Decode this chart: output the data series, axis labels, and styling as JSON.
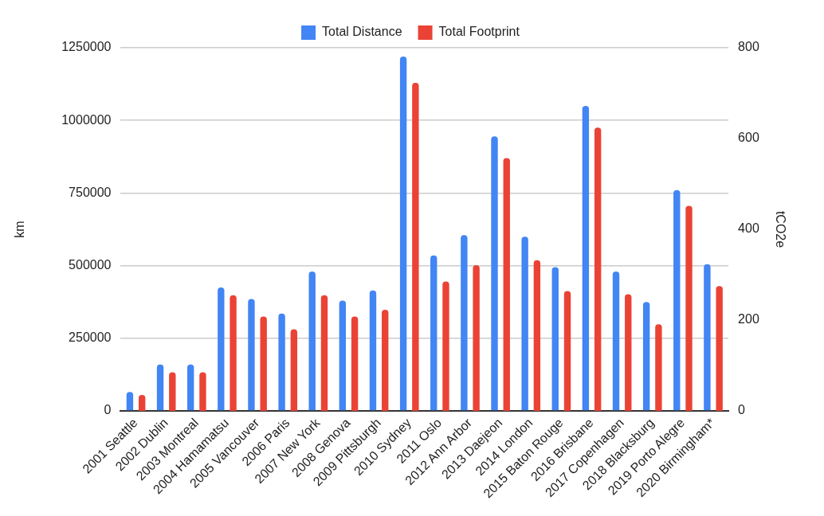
{
  "chart_data": {
    "type": "bar",
    "categories": [
      "2001 Seattle",
      "2002 Dublin",
      "2003 Montreal",
      "2004 Hamamatsu",
      "2005 Vancouver",
      "2006 Paris",
      "2007 New York",
      "2008 Genova",
      "2009 Pittsburgh",
      "2010 Sydney",
      "2011 Oslo",
      "2012 Ann Arbor",
      "2013 Daejeon",
      "2014 London",
      "2015 Baton Rouge",
      "2016 Brisbane",
      "2017 Copenhagen",
      "2018 Blacksburg",
      "2019 Porto Alegre",
      "2020 Birmingham*"
    ],
    "series": [
      {
        "name": "Total Distance",
        "color": "#4285f4",
        "values": [
          65000,
          160000,
          160000,
          425000,
          385000,
          335000,
          480000,
          380000,
          415000,
          1220000,
          535000,
          605000,
          945000,
          600000,
          495000,
          1050000,
          480000,
          375000,
          760000,
          505000
        ]
      },
      {
        "name": "Total Footprint",
        "color": "#ea4335",
        "axis": "y2",
        "values": [
          35,
          85,
          85,
          255,
          208,
          180,
          255,
          208,
          223,
          723,
          285,
          321,
          557,
          332,
          264,
          624,
          257,
          191,
          452,
          275
        ]
      }
    ],
    "ylabel": "km",
    "y2label": "tCO2e",
    "ylim": [
      0,
      1250000
    ],
    "yticks": [
      0,
      250000,
      500000,
      750000,
      1000000,
      1250000
    ],
    "y2lim": [
      0,
      800
    ],
    "y2ticks": [
      0,
      200,
      400,
      600,
      800
    ],
    "grid": "y",
    "legend": "top"
  }
}
